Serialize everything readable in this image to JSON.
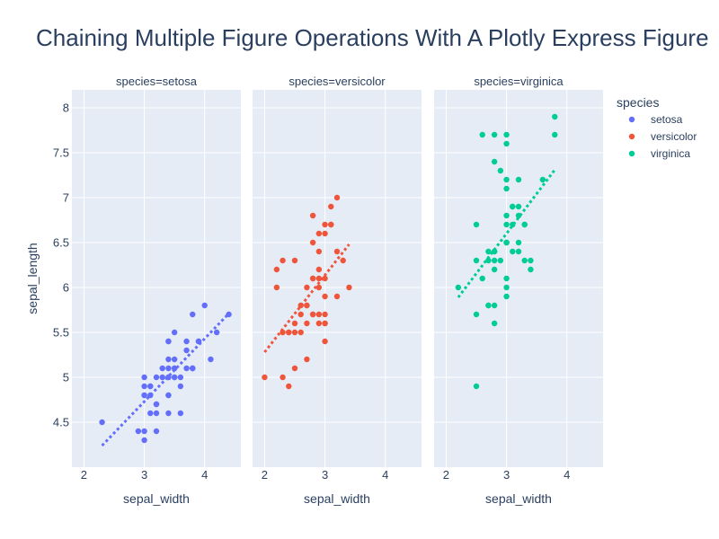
{
  "chart_data": {
    "type": "scatter",
    "title": "Chaining Multiple Figure Operations With A Plotly Express Figure",
    "xlabel": "sepal_width",
    "ylabel": "sepal_length",
    "xlim": [
      1.8,
      4.6
    ],
    "ylim": [
      4.0,
      8.2
    ],
    "x_ticks": [
      "2",
      "3",
      "4"
    ],
    "y_ticks": [
      "4.5",
      "5",
      "5.5",
      "6",
      "6.5",
      "7",
      "7.5",
      "8"
    ],
    "grid": true,
    "legend": {
      "title": "species",
      "position": "right"
    },
    "facets": [
      {
        "label": "species=setosa",
        "name": "setosa",
        "color": "#636efa",
        "points": [
          [
            3.5,
            5.1
          ],
          [
            3.0,
            4.9
          ],
          [
            3.2,
            4.7
          ],
          [
            3.1,
            4.6
          ],
          [
            3.6,
            5.0
          ],
          [
            3.9,
            5.4
          ],
          [
            3.4,
            4.6
          ],
          [
            3.4,
            5.0
          ],
          [
            2.9,
            4.4
          ],
          [
            3.1,
            4.9
          ],
          [
            3.7,
            5.4
          ],
          [
            3.4,
            4.8
          ],
          [
            3.0,
            4.8
          ],
          [
            3.0,
            4.3
          ],
          [
            4.0,
            5.8
          ],
          [
            4.4,
            5.7
          ],
          [
            3.9,
            5.4
          ],
          [
            3.5,
            5.1
          ],
          [
            3.8,
            5.7
          ],
          [
            3.8,
            5.1
          ],
          [
            3.4,
            5.4
          ],
          [
            3.7,
            5.1
          ],
          [
            3.6,
            4.6
          ],
          [
            3.3,
            5.1
          ],
          [
            3.4,
            4.8
          ],
          [
            3.0,
            5.0
          ],
          [
            3.4,
            5.0
          ],
          [
            3.5,
            5.2
          ],
          [
            3.4,
            5.2
          ],
          [
            3.2,
            4.7
          ],
          [
            3.1,
            4.8
          ],
          [
            3.4,
            5.4
          ],
          [
            4.1,
            5.2
          ],
          [
            4.2,
            5.5
          ],
          [
            3.1,
            4.9
          ],
          [
            3.2,
            5.0
          ],
          [
            3.5,
            5.5
          ],
          [
            3.6,
            4.9
          ],
          [
            3.0,
            4.4
          ],
          [
            3.4,
            5.1
          ],
          [
            3.5,
            5.0
          ],
          [
            2.3,
            4.5
          ],
          [
            3.2,
            4.4
          ],
          [
            3.5,
            5.0
          ],
          [
            3.8,
            5.1
          ],
          [
            3.0,
            4.8
          ],
          [
            3.8,
            5.1
          ],
          [
            3.2,
            4.6
          ],
          [
            3.7,
            5.3
          ],
          [
            3.3,
            5.0
          ]
        ],
        "trend": [
          [
            2.3,
            4.24
          ],
          [
            4.4,
            5.71
          ]
        ]
      },
      {
        "label": "species=versicolor",
        "name": "versicolor",
        "color": "#ef553b",
        "points": [
          [
            3.2,
            7.0
          ],
          [
            3.2,
            6.4
          ],
          [
            3.1,
            6.9
          ],
          [
            2.3,
            5.5
          ],
          [
            2.8,
            6.5
          ],
          [
            2.8,
            5.7
          ],
          [
            3.3,
            6.3
          ],
          [
            2.4,
            4.9
          ],
          [
            2.9,
            6.6
          ],
          [
            2.7,
            5.2
          ],
          [
            2.0,
            5.0
          ],
          [
            3.0,
            5.9
          ],
          [
            2.2,
            6.0
          ],
          [
            2.9,
            6.1
          ],
          [
            2.9,
            5.6
          ],
          [
            3.1,
            6.7
          ],
          [
            3.0,
            5.6
          ],
          [
            2.7,
            5.8
          ],
          [
            2.2,
            6.2
          ],
          [
            2.5,
            5.6
          ],
          [
            3.2,
            5.9
          ],
          [
            2.8,
            6.1
          ],
          [
            2.5,
            6.3
          ],
          [
            2.8,
            6.1
          ],
          [
            2.9,
            6.4
          ],
          [
            3.0,
            6.6
          ],
          [
            2.8,
            6.8
          ],
          [
            3.0,
            6.7
          ],
          [
            2.9,
            6.0
          ],
          [
            2.6,
            5.7
          ],
          [
            2.4,
            5.5
          ],
          [
            2.4,
            5.5
          ],
          [
            2.7,
            5.8
          ],
          [
            2.7,
            6.0
          ],
          [
            3.0,
            5.4
          ],
          [
            3.4,
            6.0
          ],
          [
            3.1,
            6.7
          ],
          [
            2.3,
            6.3
          ],
          [
            3.0,
            5.6
          ],
          [
            2.5,
            5.5
          ],
          [
            2.6,
            5.5
          ],
          [
            3.0,
            6.1
          ],
          [
            2.6,
            5.8
          ],
          [
            2.3,
            5.0
          ],
          [
            2.7,
            5.6
          ],
          [
            3.0,
            5.7
          ],
          [
            2.9,
            5.7
          ],
          [
            2.9,
            6.2
          ],
          [
            2.5,
            5.1
          ],
          [
            2.8,
            5.7
          ]
        ],
        "trend": [
          [
            2.0,
            5.28
          ],
          [
            3.4,
            6.48
          ]
        ]
      },
      {
        "label": "species=virginica",
        "name": "virginica",
        "color": "#00cc96",
        "points": [
          [
            3.3,
            6.3
          ],
          [
            2.7,
            5.8
          ],
          [
            3.0,
            7.1
          ],
          [
            2.9,
            6.3
          ],
          [
            3.0,
            6.5
          ],
          [
            3.0,
            7.6
          ],
          [
            2.5,
            4.9
          ],
          [
            2.9,
            7.3
          ],
          [
            2.5,
            6.7
          ],
          [
            3.6,
            7.2
          ],
          [
            3.2,
            6.5
          ],
          [
            2.7,
            6.4
          ],
          [
            3.0,
            6.8
          ],
          [
            2.5,
            5.7
          ],
          [
            2.8,
            5.8
          ],
          [
            3.2,
            6.4
          ],
          [
            3.0,
            6.5
          ],
          [
            3.8,
            7.7
          ],
          [
            2.6,
            7.7
          ],
          [
            2.2,
            6.0
          ],
          [
            3.2,
            6.9
          ],
          [
            2.8,
            5.6
          ],
          [
            2.8,
            7.7
          ],
          [
            2.7,
            6.3
          ],
          [
            3.3,
            6.7
          ],
          [
            3.2,
            7.2
          ],
          [
            2.8,
            6.2
          ],
          [
            3.0,
            6.1
          ],
          [
            2.8,
            6.4
          ],
          [
            3.0,
            7.2
          ],
          [
            2.8,
            7.4
          ],
          [
            3.8,
            7.9
          ],
          [
            2.8,
            6.4
          ],
          [
            2.8,
            6.3
          ],
          [
            2.6,
            6.1
          ],
          [
            3.0,
            7.7
          ],
          [
            3.4,
            6.3
          ],
          [
            3.1,
            6.4
          ],
          [
            3.0,
            6.0
          ],
          [
            3.1,
            6.9
          ],
          [
            3.1,
            6.7
          ],
          [
            3.1,
            6.9
          ],
          [
            2.7,
            5.8
          ],
          [
            3.2,
            6.8
          ],
          [
            3.3,
            6.7
          ],
          [
            3.0,
            6.7
          ],
          [
            2.5,
            6.3
          ],
          [
            3.0,
            6.5
          ],
          [
            3.4,
            6.2
          ],
          [
            3.0,
            5.9
          ]
        ],
        "trend": [
          [
            2.2,
            5.89
          ],
          [
            3.8,
            7.31
          ]
        ]
      }
    ]
  }
}
